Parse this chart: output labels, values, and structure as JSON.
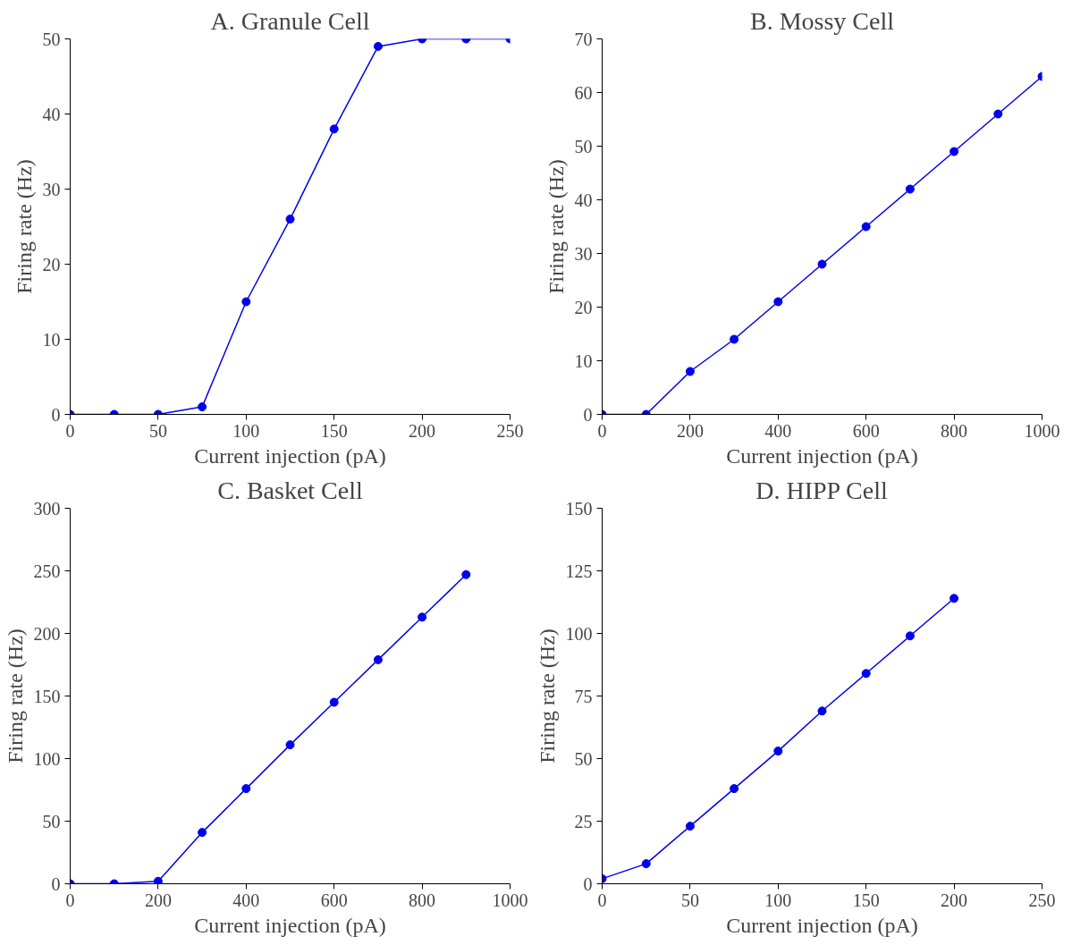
{
  "chart_data": [
    {
      "type": "line",
      "title": "A. Granule Cell",
      "xlabel": "Current injection (pA)",
      "ylabel": "Firing rate (Hz)",
      "x": [
        0,
        25,
        50,
        75,
        100,
        125,
        150,
        175,
        200,
        225,
        250
      ],
      "values": [
        0,
        0,
        0,
        1,
        15,
        26,
        38,
        49,
        50,
        50,
        50
      ],
      "color": "#0000ee",
      "marker": "circle",
      "xlim": [
        0,
        250
      ],
      "ylim": [
        0,
        50
      ],
      "xticks": [
        0,
        50,
        100,
        150,
        200,
        250
      ],
      "yticks": [
        0,
        10,
        20,
        30,
        40,
        50
      ]
    },
    {
      "type": "line",
      "title": "B. Mossy Cell",
      "xlabel": "Current injection (pA)",
      "ylabel": "Firing rate (Hz)",
      "x": [
        0,
        100,
        200,
        300,
        400,
        500,
        600,
        700,
        800,
        900,
        1000
      ],
      "values": [
        0,
        0,
        8,
        14,
        21,
        28,
        35,
        42,
        49,
        56,
        63
      ],
      "color": "#0000ee",
      "marker": "circle",
      "xlim": [
        0,
        1000
      ],
      "ylim": [
        0,
        70
      ],
      "xticks": [
        0,
        200,
        400,
        600,
        800,
        1000
      ],
      "yticks": [
        0,
        10,
        20,
        30,
        40,
        50,
        60,
        70
      ]
    },
    {
      "type": "line",
      "title": "C. Basket Cell",
      "xlabel": "Current injection (pA)",
      "ylabel": "Firing rate (Hz)",
      "x": [
        0,
        100,
        200,
        300,
        400,
        500,
        600,
        700,
        800,
        900
      ],
      "values": [
        0,
        0,
        2,
        41,
        76,
        111,
        145,
        179,
        213,
        247
      ],
      "color": "#0000ee",
      "marker": "circle",
      "xlim": [
        0,
        1000
      ],
      "ylim": [
        0,
        300
      ],
      "xticks": [
        0,
        200,
        400,
        600,
        800,
        1000
      ],
      "yticks": [
        0,
        50,
        100,
        150,
        200,
        250,
        300
      ]
    },
    {
      "type": "line",
      "title": "D. HIPP Cell",
      "xlabel": "Current injection (pA)",
      "ylabel": "Firing rate (Hz)",
      "x": [
        0,
        25,
        50,
        75,
        100,
        125,
        150,
        175,
        200
      ],
      "values": [
        2,
        8,
        23,
        38,
        53,
        69,
        84,
        99,
        114
      ],
      "color": "#0000ee",
      "marker": "circle",
      "xlim": [
        0,
        250
      ],
      "ylim": [
        0,
        150
      ],
      "xticks": [
        0,
        50,
        100,
        150,
        200,
        250
      ],
      "yticks": [
        0,
        25,
        50,
        75,
        100,
        125,
        150
      ]
    }
  ]
}
